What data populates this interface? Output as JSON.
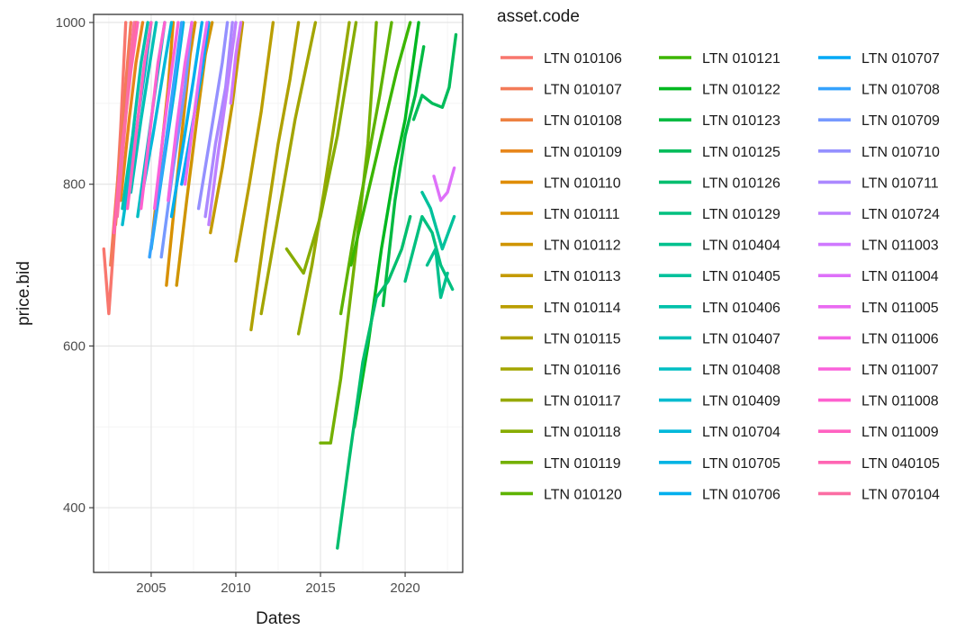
{
  "chart_data": {
    "type": "line",
    "xlabel": "Dates",
    "ylabel": "price.bid",
    "xlim": [
      2001.6,
      2023.4
    ],
    "ylim": [
      320,
      1010
    ],
    "x_ticks": [
      {
        "value": 2005,
        "label": "2005"
      },
      {
        "value": 2010,
        "label": "2010"
      },
      {
        "value": 2015,
        "label": "2015"
      },
      {
        "value": 2020,
        "label": "2020"
      }
    ],
    "y_ticks": [
      {
        "value": 400,
        "label": "400"
      },
      {
        "value": 600,
        "label": "600"
      },
      {
        "value": 800,
        "label": "800"
      },
      {
        "value": 1000,
        "label": "1000"
      }
    ],
    "grid": true,
    "legend": {
      "title": "asset.code",
      "placement": "right",
      "columns": 3
    },
    "series": [
      {
        "name": "LTN 010106",
        "color": "#F8766D",
        "values": [
          [
            2002.2,
            720
          ],
          [
            2002.5,
            640
          ],
          [
            2002.7,
            700
          ],
          [
            2002.9,
            760
          ],
          [
            2003.2,
            870
          ],
          [
            2003.5,
            1000
          ]
        ]
      },
      {
        "name": "LTN 010107",
        "color": "#F37B59",
        "values": [
          [
            2002.6,
            700
          ],
          [
            2003.0,
            800
          ],
          [
            2003.4,
            900
          ],
          [
            2003.8,
            1000
          ]
        ]
      },
      {
        "name": "LTN 010108",
        "color": "#ED8141",
        "values": [
          [
            2002.9,
            750
          ],
          [
            2003.3,
            850
          ],
          [
            2003.7,
            930
          ],
          [
            2004.1,
            1000
          ]
        ]
      },
      {
        "name": "LTN 010109",
        "color": "#E7861B",
        "values": [
          [
            2003.2,
            780
          ],
          [
            2003.7,
            880
          ],
          [
            2004.1,
            950
          ],
          [
            2004.5,
            1000
          ]
        ]
      },
      {
        "name": "LTN 010110",
        "color": "#DF8C00",
        "values": [
          [
            2005.0,
            720
          ],
          [
            2005.5,
            820
          ],
          [
            2006.0,
            920
          ],
          [
            2006.3,
            1000
          ]
        ]
      },
      {
        "name": "LTN 010111",
        "color": "#D89000",
        "values": [
          [
            2005.9,
            675
          ],
          [
            2006.4,
            780
          ],
          [
            2006.9,
            880
          ],
          [
            2007.3,
            960
          ],
          [
            2007.6,
            1000
          ]
        ]
      },
      {
        "name": "LTN 010112",
        "color": "#CF9400",
        "values": [
          [
            2006.5,
            675
          ],
          [
            2007.1,
            780
          ],
          [
            2007.7,
            880
          ],
          [
            2008.2,
            960
          ],
          [
            2008.6,
            1000
          ]
        ]
      },
      {
        "name": "LTN 010113",
        "color": "#C49A00",
        "values": [
          [
            2008.5,
            740
          ],
          [
            2009.2,
            820
          ],
          [
            2009.8,
            900
          ],
          [
            2010.4,
            1000
          ]
        ]
      },
      {
        "name": "LTN 010114",
        "color": "#BA9E00",
        "values": [
          [
            2010.0,
            705
          ],
          [
            2010.8,
            800
          ],
          [
            2011.5,
            890
          ],
          [
            2012.2,
            1000
          ]
        ]
      },
      {
        "name": "LTN 010115",
        "color": "#AFA100",
        "values": [
          [
            2010.9,
            620
          ],
          [
            2011.7,
            740
          ],
          [
            2012.5,
            850
          ],
          [
            2013.2,
            930
          ],
          [
            2013.7,
            1000
          ]
        ]
      },
      {
        "name": "LTN 010116",
        "color": "#A3A500",
        "values": [
          [
            2011.5,
            640
          ],
          [
            2012.5,
            760
          ],
          [
            2013.5,
            880
          ],
          [
            2014.3,
            960
          ],
          [
            2014.7,
            1000
          ]
        ]
      },
      {
        "name": "LTN 010117",
        "color": "#96A900",
        "values": [
          [
            2013.7,
            615
          ],
          [
            2014.5,
            700
          ],
          [
            2015.2,
            790
          ],
          [
            2016.0,
            900
          ],
          [
            2016.7,
            1000
          ]
        ]
      },
      {
        "name": "LTN 010118",
        "color": "#87AC00",
        "values": [
          [
            2013.0,
            720
          ],
          [
            2014.0,
            690
          ],
          [
            2015.0,
            760
          ],
          [
            2016.0,
            860
          ],
          [
            2017.1,
            1000
          ]
        ]
      },
      {
        "name": "LTN 010119",
        "color": "#74B000",
        "values": [
          [
            2015.0,
            480
          ],
          [
            2015.6,
            480
          ],
          [
            2016.2,
            560
          ],
          [
            2017.0,
            700
          ],
          [
            2017.8,
            850
          ],
          [
            2018.3,
            1000
          ]
        ]
      },
      {
        "name": "LTN 010120",
        "color": "#5EB300",
        "values": [
          [
            2016.2,
            640
          ],
          [
            2017.0,
            740
          ],
          [
            2017.8,
            830
          ],
          [
            2018.5,
            910
          ],
          [
            2019.2,
            1000
          ]
        ]
      },
      {
        "name": "LTN 010121",
        "color": "#3BB600",
        "values": [
          [
            2016.8,
            700
          ],
          [
            2017.7,
            780
          ],
          [
            2018.6,
            860
          ],
          [
            2019.5,
            940
          ],
          [
            2020.3,
            1000
          ]
        ]
      },
      {
        "name": "LTN 010122",
        "color": "#00B81F",
        "values": [
          [
            2017.0,
            500
          ],
          [
            2017.8,
            600
          ],
          [
            2018.6,
            720
          ],
          [
            2019.4,
            820
          ],
          [
            2020.0,
            880
          ],
          [
            2020.8,
            1000
          ]
        ]
      },
      {
        "name": "LTN 010123",
        "color": "#00BA42",
        "values": [
          [
            2018.7,
            650
          ],
          [
            2019.4,
            780
          ],
          [
            2020.0,
            860
          ],
          [
            2020.6,
            910
          ],
          [
            2021.1,
            970
          ]
        ]
      },
      {
        "name": "LTN 010125",
        "color": "#00BC5A",
        "values": [
          [
            2020.5,
            880
          ],
          [
            2021.0,
            910
          ],
          [
            2021.6,
            900
          ],
          [
            2022.2,
            895
          ],
          [
            2022.6,
            920
          ],
          [
            2023.0,
            985
          ]
        ]
      },
      {
        "name": "LTN 010126",
        "color": "#00BE6E",
        "values": [
          [
            2016.0,
            350
          ],
          [
            2016.7,
            460
          ],
          [
            2017.5,
            580
          ],
          [
            2018.3,
            660
          ],
          [
            2019.0,
            680
          ],
          [
            2019.8,
            720
          ],
          [
            2020.3,
            760
          ]
        ]
      },
      {
        "name": "LTN 010129",
        "color": "#00C07F",
        "values": [
          [
            2020.0,
            680
          ],
          [
            2021.0,
            760
          ],
          [
            2021.6,
            740
          ],
          [
            2022.1,
            700
          ],
          [
            2022.8,
            670
          ]
        ]
      },
      {
        "name": "LTN 010404",
        "color": "#00C08E",
        "values": [
          [
            2021.3,
            700
          ],
          [
            2021.8,
            720
          ],
          [
            2022.1,
            660
          ],
          [
            2022.5,
            690
          ]
        ]
      },
      {
        "name": "LTN 010405",
        "color": "#00C19C",
        "values": [
          [
            2021.0,
            790
          ],
          [
            2021.5,
            770
          ],
          [
            2022.2,
            720
          ],
          [
            2022.9,
            760
          ]
        ]
      },
      {
        "name": "LTN 010406",
        "color": "#00C1AA",
        "values": [
          [
            2003.3,
            770
          ],
          [
            2003.9,
            860
          ],
          [
            2004.4,
            950
          ],
          [
            2004.8,
            1000
          ]
        ]
      },
      {
        "name": "LTN 010407",
        "color": "#00C0B7",
        "values": [
          [
            2003.8,
            790
          ],
          [
            2004.4,
            880
          ],
          [
            2005.0,
            960
          ],
          [
            2005.3,
            1000
          ]
        ]
      },
      {
        "name": "LTN 010408",
        "color": "#00BEC3",
        "values": [
          [
            2004.2,
            760
          ],
          [
            2004.8,
            850
          ],
          [
            2005.4,
            940
          ],
          [
            2005.8,
            1000
          ]
        ]
      },
      {
        "name": "LTN 010409",
        "color": "#00BBCF",
        "values": [
          [
            2003.3,
            750
          ],
          [
            2004.0,
            850
          ],
          [
            2004.7,
            950
          ],
          [
            2005.0,
            1000
          ]
        ]
      },
      {
        "name": "LTN 010704",
        "color": "#00B8DA",
        "values": [
          [
            2004.4,
            780
          ],
          [
            2005.1,
            860
          ],
          [
            2005.8,
            950
          ],
          [
            2006.2,
            1000
          ]
        ]
      },
      {
        "name": "LTN 010705",
        "color": "#00B4E4",
        "values": [
          [
            2005.0,
            720
          ],
          [
            2005.7,
            820
          ],
          [
            2006.4,
            920
          ],
          [
            2006.9,
            1000
          ]
        ]
      },
      {
        "name": "LTN 010706",
        "color": "#00AFEE",
        "values": [
          [
            2006.2,
            760
          ],
          [
            2006.9,
            850
          ],
          [
            2007.5,
            930
          ],
          [
            2008.0,
            1000
          ]
        ]
      },
      {
        "name": "LTN 010707",
        "color": "#00A9F6",
        "values": [
          [
            2006.8,
            800
          ],
          [
            2007.4,
            870
          ],
          [
            2008.0,
            940
          ],
          [
            2008.4,
            1000
          ]
        ]
      },
      {
        "name": "LTN 010708",
        "color": "#35A2FD",
        "values": [
          [
            2004.9,
            710
          ],
          [
            2005.6,
            810
          ],
          [
            2006.3,
            920
          ],
          [
            2006.8,
            1000
          ]
        ]
      },
      {
        "name": "LTN 010709",
        "color": "#7699FF",
        "values": [
          [
            2005.6,
            710
          ],
          [
            2006.3,
            820
          ],
          [
            2007.0,
            920
          ],
          [
            2007.4,
            1000
          ]
        ]
      },
      {
        "name": "LTN 010710",
        "color": "#9490FF",
        "values": [
          [
            2007.8,
            770
          ],
          [
            2008.5,
            860
          ],
          [
            2009.2,
            950
          ],
          [
            2009.5,
            1000
          ]
        ]
      },
      {
        "name": "LTN 010711",
        "color": "#AB88FF",
        "values": [
          [
            2008.2,
            760
          ],
          [
            2008.8,
            850
          ],
          [
            2009.4,
            920
          ],
          [
            2009.8,
            1000
          ]
        ]
      },
      {
        "name": "LTN 010724",
        "color": "#BE80FF",
        "values": [
          [
            2008.4,
            750
          ],
          [
            2008.9,
            830
          ],
          [
            2009.5,
            920
          ],
          [
            2010.0,
            1000
          ]
        ]
      },
      {
        "name": "LTN 011003",
        "color": "#CF78FF",
        "values": [
          [
            2009.7,
            900
          ],
          [
            2010.0,
            960
          ],
          [
            2010.3,
            1000
          ]
        ]
      },
      {
        "name": "LTN 011004",
        "color": "#DE70F9",
        "values": [
          [
            2021.7,
            810
          ],
          [
            2022.1,
            780
          ],
          [
            2022.5,
            790
          ],
          [
            2022.9,
            820
          ]
        ]
      },
      {
        "name": "LTN 011005",
        "color": "#E96AF1",
        "values": [
          [
            2007.0,
            800
          ],
          [
            2007.5,
            880
          ],
          [
            2008.0,
            960
          ],
          [
            2008.3,
            1000
          ]
        ]
      },
      {
        "name": "LTN 011006",
        "color": "#F365E6",
        "values": [
          [
            2006.0,
            780
          ],
          [
            2006.5,
            870
          ],
          [
            2007.0,
            950
          ],
          [
            2007.4,
            1000
          ]
        ]
      },
      {
        "name": "LTN 011007",
        "color": "#FA62DB",
        "values": [
          [
            2005.2,
            770
          ],
          [
            2005.7,
            860
          ],
          [
            2006.2,
            940
          ],
          [
            2006.6,
            1000
          ]
        ]
      },
      {
        "name": "LTN 011008",
        "color": "#FE61CF",
        "values": [
          [
            2004.4,
            770
          ],
          [
            2004.9,
            860
          ],
          [
            2005.4,
            950
          ],
          [
            2005.8,
            1000
          ]
        ]
      },
      {
        "name": "LTN 011009",
        "color": "#FF62C1",
        "values": [
          [
            2003.6,
            770
          ],
          [
            2004.1,
            860
          ],
          [
            2004.6,
            950
          ],
          [
            2005.0,
            1000
          ]
        ]
      },
      {
        "name": "LTN 040105",
        "color": "#FF65B3",
        "values": [
          [
            2002.8,
            740
          ],
          [
            2003.3,
            850
          ],
          [
            2003.8,
            940
          ],
          [
            2004.2,
            1000
          ]
        ]
      },
      {
        "name": "LTN 070104",
        "color": "#FB6DA3",
        "values": [
          [
            2003.0,
            760
          ],
          [
            2003.4,
            860
          ],
          [
            2003.8,
            960
          ],
          [
            2004.0,
            1000
          ]
        ]
      }
    ]
  }
}
